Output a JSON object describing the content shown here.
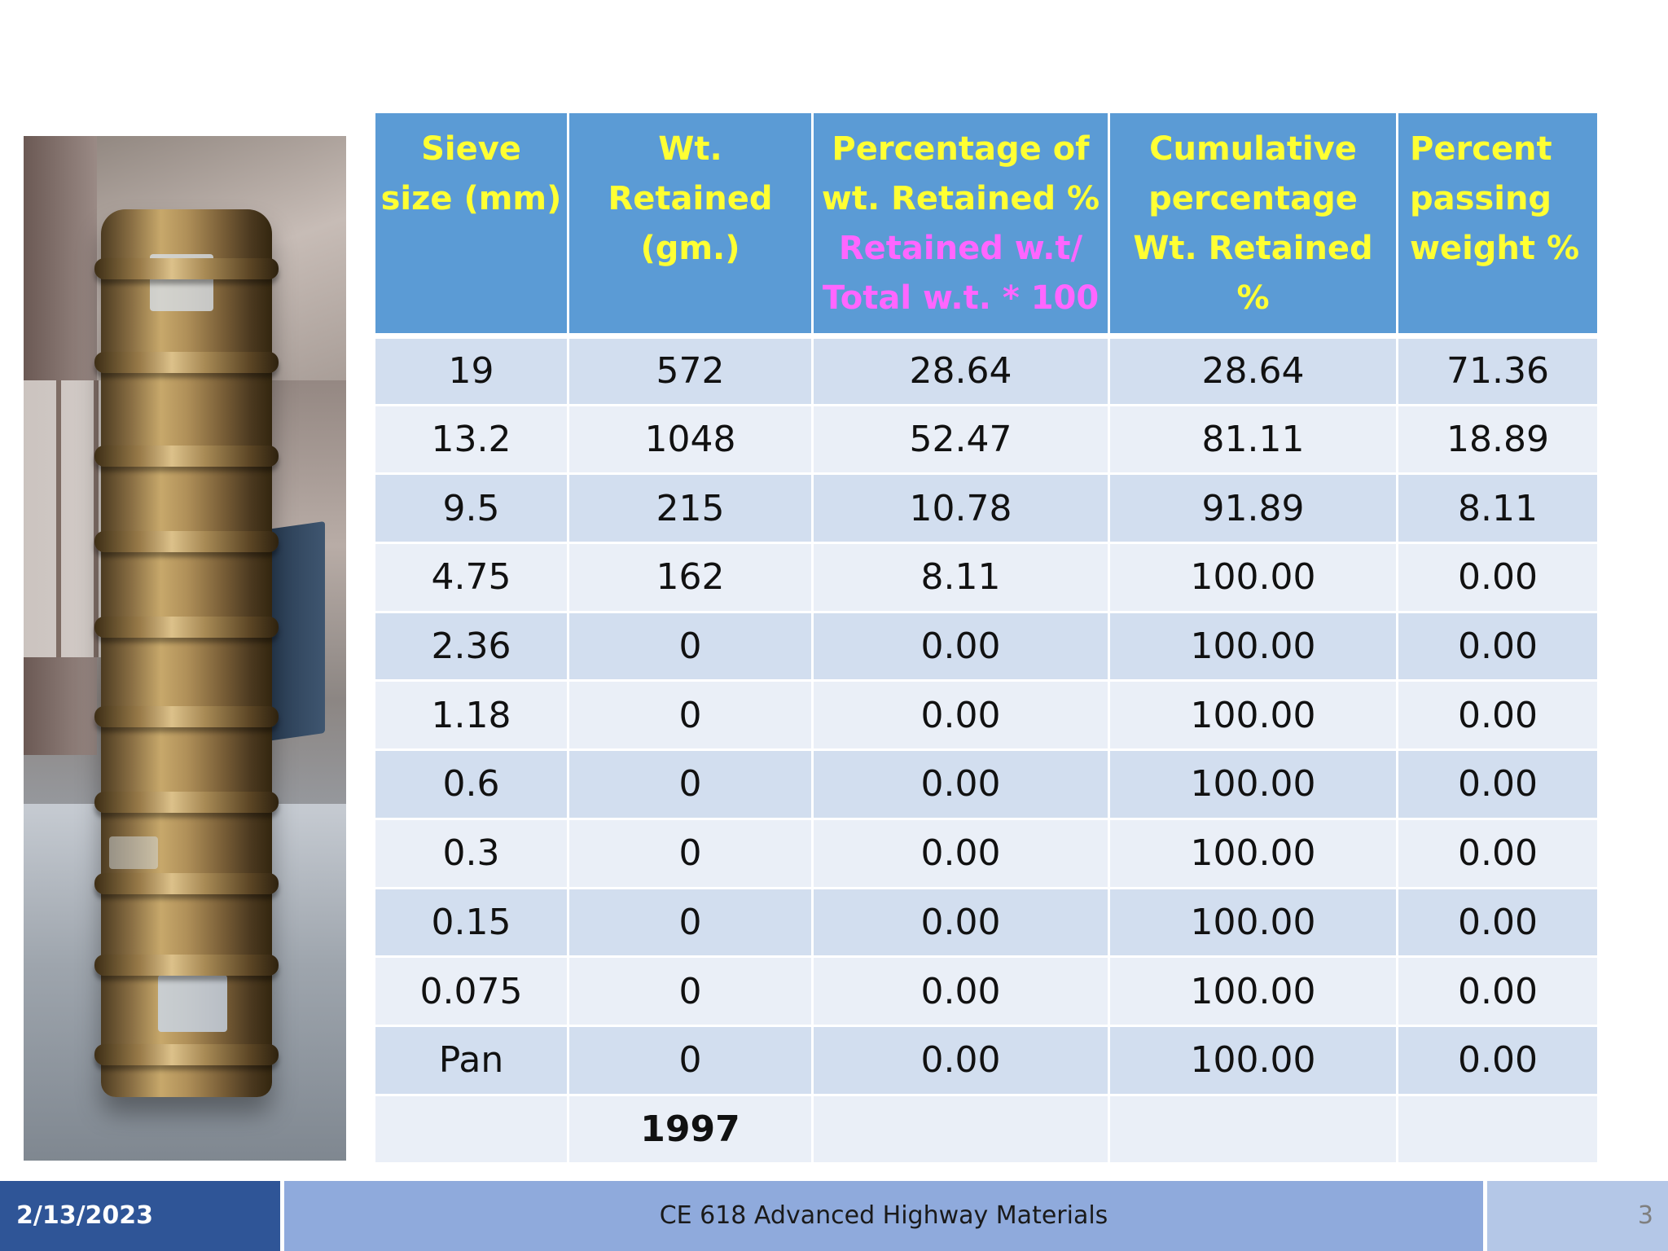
{
  "table": {
    "headers": {
      "sieve_size": "Sieve size (mm)",
      "wt_retained": "Wt. Retained (gm.)",
      "pct_retained": "Percentage of wt. Retained %",
      "pct_retained_formula": "Retained w.t/ Total w.t. * 100",
      "cumulative": "Cumulative percentage Wt. Retained %",
      "passing": "Percent passing weight %"
    },
    "rows": [
      [
        "19",
        "572",
        "28.64",
        "28.64",
        "71.36"
      ],
      [
        "13.2",
        "1048",
        "52.47",
        "81.11",
        "18.89"
      ],
      [
        "9.5",
        "215",
        "10.78",
        "91.89",
        "8.11"
      ],
      [
        "4.75",
        "162",
        "8.11",
        "100.00",
        "0.00"
      ],
      [
        "2.36",
        "0",
        "0.00",
        "100.00",
        "0.00"
      ],
      [
        "1.18",
        "0",
        "0.00",
        "100.00",
        "0.00"
      ],
      [
        "0.6",
        "0",
        "0.00",
        "100.00",
        "0.00"
      ],
      [
        "0.3",
        "0",
        "0.00",
        "100.00",
        "0.00"
      ],
      [
        "0.15",
        "0",
        "0.00",
        "100.00",
        "0.00"
      ],
      [
        "0.075",
        "0",
        "0.00",
        "100.00",
        "0.00"
      ],
      [
        "Pan",
        "0",
        "0.00",
        "100.00",
        "0.00"
      ]
    ],
    "total_weight": "1997"
  },
  "footer": {
    "date": "2/13/2023",
    "course": "CE 618 Advanced Highway Materials",
    "page_number": "3"
  },
  "colors": {
    "header_bg": "#5b9bd5",
    "header_text": "#ffff33",
    "formula_text": "#ff66ff",
    "row_odd": "#d2deef",
    "row_even": "#eaeff7",
    "total_text": "#ff0000",
    "footer_date_bg": "#2f5597",
    "footer_course_bg": "#8faadc",
    "footer_page_bg": "#b4c7e7"
  }
}
